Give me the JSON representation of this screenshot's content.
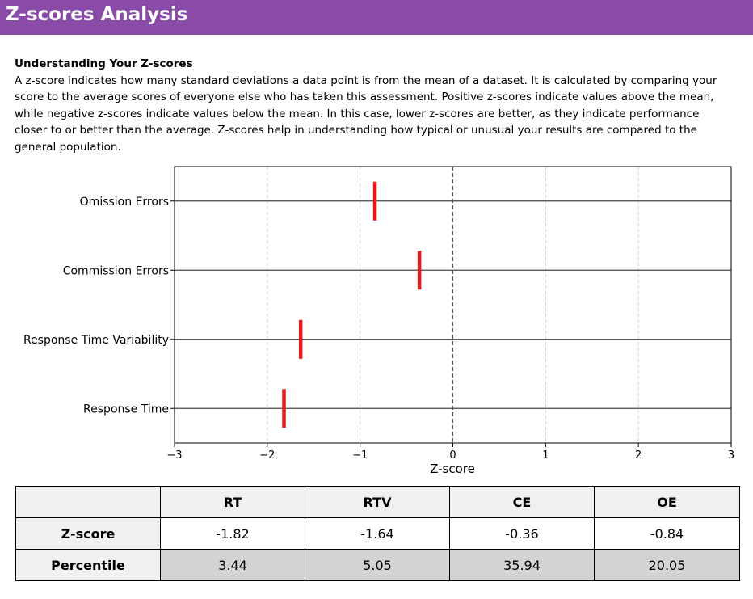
{
  "header": {
    "title": "Z-scores Analysis"
  },
  "intro": {
    "heading": "Understanding Your Z-scores",
    "body": "A z-score indicates how many standard deviations a data point is from the mean of a dataset. It is calculated by comparing your score to the average scores of everyone else who has taken this assessment. Positive z-scores indicate values above the mean, while negative z-scores indicate values below the mean. In this case, lower z-scores are better, as they indicate performance closer to or better than the average. Z-scores help in understanding how typical or unusual your results are compared to the general population."
  },
  "chart_data": {
    "type": "scatter",
    "title": "",
    "xlabel": "Z-score",
    "ylabel": "",
    "xlim": [
      -3,
      3
    ],
    "x_ticks": [
      "−3",
      "−2",
      "−1",
      "0",
      "1",
      "2",
      "3"
    ],
    "categories": [
      "Omission Errors",
      "Commission Errors",
      "Response Time Variability",
      "Response Time"
    ],
    "values": [
      -0.84,
      -0.36,
      -1.64,
      -1.82
    ],
    "marker": "vertical line",
    "marker_color": "#e41a1c",
    "mean_line": "dashed at 0",
    "grid": true
  },
  "table": {
    "columns": [
      "",
      "RT",
      "RTV",
      "CE",
      "OE"
    ],
    "rows": [
      {
        "label": "Z-score",
        "values": [
          "-1.82",
          "-1.64",
          "-0.36",
          "-0.84"
        ]
      },
      {
        "label": "Percentile",
        "values": [
          "3.44",
          "5.05",
          "35.94",
          "20.05"
        ]
      }
    ]
  },
  "colors": {
    "header_bg": "#8a4ba8",
    "marker": "#e41a1c",
    "header_cell_bg": "#f0f0f0",
    "percentile_bg": "#d3d3d3"
  }
}
